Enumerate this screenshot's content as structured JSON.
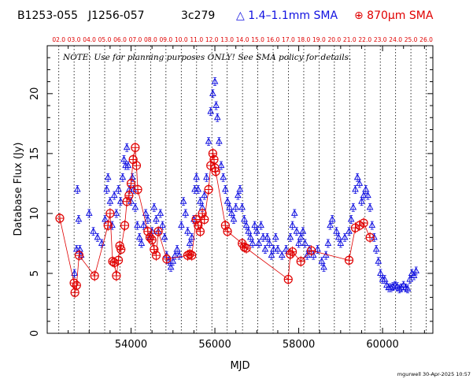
{
  "header": {
    "source_names": [
      "B1253-055",
      "J1256-057",
      "3c279"
    ],
    "legend_blue": "△ 1.4–1.1mm SMA",
    "legend_red": "⊕ 870μm SMA",
    "color_blue": "#1010e0",
    "color_red": "#e00000"
  },
  "note": "NOTE: Use for planning purposes ONLY!  See SMA policy for details.",
  "credit": "mgurwell 30-Apr-2025 10:57",
  "chart_data": {
    "type": "scatter",
    "xlabel": "MJD",
    "ylabel": "Database Flux (Jy)",
    "xlim": [
      52000,
      61200
    ],
    "ylim": [
      0,
      24
    ],
    "xticks": [
      54000,
      56000,
      58000,
      60000
    ],
    "yticks": [
      0,
      5,
      10,
      15,
      20
    ],
    "top_axis_labels": [
      "02.0",
      "03.0",
      "04.0",
      "05.0",
      "06.0",
      "07.0",
      "08.0",
      "09.0",
      "10.0",
      "11.0",
      "12.0",
      "13.0",
      "14.0",
      "15.0",
      "16.0",
      "17.0",
      "18.0",
      "19.0",
      "20.0",
      "21.0",
      "22.0",
      "23.0",
      "24.0",
      "25.0",
      "26.0"
    ],
    "top_axis_mjd": [
      52276,
      52641,
      53006,
      53371,
      53737,
      54102,
      54467,
      54832,
      55198,
      55563,
      55928,
      56293,
      56659,
      57024,
      57389,
      57754,
      58120,
      58485,
      58850,
      59215,
      59581,
      59946,
      60311,
      60676,
      61041
    ],
    "series": [
      {
        "marker": "triangle",
        "color": "#1010e0",
        "points": [
          [
            52650,
            5.0
          ],
          [
            52700,
            7.0
          ],
          [
            52720,
            12.0
          ],
          [
            52750,
            9.5
          ],
          [
            52780,
            7.0
          ],
          [
            52810,
            6.5
          ],
          [
            53000,
            10.0
          ],
          [
            53100,
            8.5
          ],
          [
            53200,
            8.0
          ],
          [
            53300,
            7.5
          ],
          [
            53380,
            9.5
          ],
          [
            53420,
            12.0
          ],
          [
            53450,
            13.0
          ],
          [
            53500,
            11.0
          ],
          [
            53550,
            9.0
          ],
          [
            53600,
            11.5
          ],
          [
            53650,
            10.0
          ],
          [
            53700,
            12.0
          ],
          [
            53750,
            11.0
          ],
          [
            53800,
            13.0
          ],
          [
            53830,
            14.5
          ],
          [
            53870,
            14.0
          ],
          [
            53900,
            15.5
          ],
          [
            53930,
            14.0
          ],
          [
            53960,
            12.0
          ],
          [
            54000,
            11.0
          ],
          [
            54030,
            13.0
          ],
          [
            54060,
            12.0
          ],
          [
            54100,
            10.5
          ],
          [
            54150,
            9.0
          ],
          [
            54200,
            8.0
          ],
          [
            54250,
            7.5
          ],
          [
            54300,
            9.0
          ],
          [
            54350,
            10.0
          ],
          [
            54400,
            9.5
          ],
          [
            54450,
            8.0
          ],
          [
            54500,
            8.5
          ],
          [
            54550,
            10.5
          ],
          [
            54600,
            9.5
          ],
          [
            54650,
            8.5
          ],
          [
            54700,
            10.0
          ],
          [
            54750,
            9.0
          ],
          [
            54800,
            8.0
          ],
          [
            54850,
            6.5
          ],
          [
            54900,
            6.0
          ],
          [
            54950,
            5.5
          ],
          [
            55000,
            6.0
          ],
          [
            55050,
            6.5
          ],
          [
            55100,
            7.0
          ],
          [
            55150,
            6.5
          ],
          [
            55200,
            9.0
          ],
          [
            55250,
            11.0
          ],
          [
            55300,
            10.0
          ],
          [
            55350,
            8.5
          ],
          [
            55400,
            7.5
          ],
          [
            55450,
            8.0
          ],
          [
            55500,
            9.5
          ],
          [
            55520,
            12.0
          ],
          [
            55560,
            13.0
          ],
          [
            55600,
            12.0
          ],
          [
            55650,
            11.0
          ],
          [
            55700,
            10.5
          ],
          [
            55750,
            11.5
          ],
          [
            55800,
            13.0
          ],
          [
            55850,
            16.0
          ],
          [
            55900,
            18.5
          ],
          [
            55950,
            20.0
          ],
          [
            56000,
            21.0
          ],
          [
            56030,
            19.0
          ],
          [
            56060,
            18.0
          ],
          [
            56100,
            16.0
          ],
          [
            56150,
            14.0
          ],
          [
            56200,
            13.0
          ],
          [
            56250,
            12.0
          ],
          [
            56300,
            11.0
          ],
          [
            56350,
            10.5
          ],
          [
            56400,
            10.0
          ],
          [
            56450,
            9.5
          ],
          [
            56500,
            10.5
          ],
          [
            56550,
            11.5
          ],
          [
            56600,
            12.0
          ],
          [
            56650,
            10.5
          ],
          [
            56700,
            9.5
          ],
          [
            56750,
            9.0
          ],
          [
            56800,
            8.5
          ],
          [
            56850,
            8.0
          ],
          [
            56900,
            7.5
          ],
          [
            56950,
            9.0
          ],
          [
            57000,
            8.5
          ],
          [
            57050,
            7.5
          ],
          [
            57100,
            9.0
          ],
          [
            57150,
            8.0
          ],
          [
            57200,
            7.0
          ],
          [
            57250,
            8.0
          ],
          [
            57300,
            7.5
          ],
          [
            57350,
            6.5
          ],
          [
            57400,
            7.0
          ],
          [
            57450,
            8.0
          ],
          [
            57500,
            7.0
          ],
          [
            57600,
            6.5
          ],
          [
            57700,
            7.0
          ],
          [
            57800,
            8.0
          ],
          [
            57850,
            9.0
          ],
          [
            57900,
            10.0
          ],
          [
            57950,
            8.5
          ],
          [
            58000,
            7.5
          ],
          [
            58050,
            8.0
          ],
          [
            58100,
            8.5
          ],
          [
            58150,
            7.5
          ],
          [
            58200,
            6.5
          ],
          [
            58250,
            7.0
          ],
          [
            58350,
            6.5
          ],
          [
            58450,
            7.0
          ],
          [
            58550,
            6.0
          ],
          [
            58600,
            5.5
          ],
          [
            58650,
            6.5
          ],
          [
            58700,
            7.5
          ],
          [
            58750,
            9.0
          ],
          [
            58800,
            9.5
          ],
          [
            58900,
            8.5
          ],
          [
            58950,
            8.0
          ],
          [
            59000,
            7.5
          ],
          [
            59100,
            8.0
          ],
          [
            59200,
            8.5
          ],
          [
            59250,
            9.5
          ],
          [
            59300,
            10.5
          ],
          [
            59350,
            12.0
          ],
          [
            59400,
            13.0
          ],
          [
            59450,
            12.5
          ],
          [
            59500,
            11.0
          ],
          [
            59550,
            11.5
          ],
          [
            59600,
            12.0
          ],
          [
            59650,
            11.5
          ],
          [
            59700,
            10.5
          ],
          [
            59750,
            9.0
          ],
          [
            59800,
            8.0
          ],
          [
            59850,
            7.0
          ],
          [
            59900,
            6.0
          ],
          [
            59950,
            5.0
          ],
          [
            60000,
            4.5
          ],
          [
            60050,
            4.5
          ],
          [
            60100,
            4.0
          ],
          [
            60150,
            3.8
          ],
          [
            60200,
            3.8
          ],
          [
            60250,
            3.9
          ],
          [
            60300,
            4.0
          ],
          [
            60350,
            3.9
          ],
          [
            60400,
            3.7
          ],
          [
            60450,
            3.8
          ],
          [
            60500,
            4.0
          ],
          [
            60550,
            3.8
          ],
          [
            60600,
            3.7
          ],
          [
            60650,
            4.5
          ],
          [
            60700,
            5.0
          ],
          [
            60750,
            4.8
          ],
          [
            60800,
            5.2
          ]
        ]
      },
      {
        "marker": "circle-plus",
        "color": "#e00000",
        "points": [
          [
            52300,
            9.6
          ],
          [
            52640,
            4.2
          ],
          [
            52660,
            3.4
          ],
          [
            52700,
            4.0
          ],
          [
            52760,
            6.5
          ],
          [
            53130,
            4.8
          ],
          [
            53450,
            9.0
          ],
          [
            53500,
            10.0
          ],
          [
            53560,
            6.0
          ],
          [
            53600,
            5.9
          ],
          [
            53650,
            4.8
          ],
          [
            53700,
            6.1
          ],
          [
            53730,
            7.3
          ],
          [
            53760,
            7.0
          ],
          [
            53850,
            9.0
          ],
          [
            53900,
            11.0
          ],
          [
            53950,
            11.5
          ],
          [
            54000,
            12.5
          ],
          [
            54050,
            14.5
          ],
          [
            54100,
            15.5
          ],
          [
            54130,
            14.0
          ],
          [
            54160,
            12.0
          ],
          [
            54400,
            8.5
          ],
          [
            54450,
            8.0
          ],
          [
            54500,
            7.8
          ],
          [
            54550,
            7.0
          ],
          [
            54600,
            6.5
          ],
          [
            54650,
            8.5
          ],
          [
            54850,
            6.2
          ],
          [
            55350,
            6.5
          ],
          [
            55400,
            6.6
          ],
          [
            55450,
            6.5
          ],
          [
            55550,
            9.5
          ],
          [
            55600,
            9.0
          ],
          [
            55650,
            8.5
          ],
          [
            55700,
            10.0
          ],
          [
            55750,
            9.5
          ],
          [
            55850,
            12.0
          ],
          [
            55900,
            14.0
          ],
          [
            55950,
            15.0
          ],
          [
            55980,
            14.5
          ],
          [
            56000,
            13.8
          ],
          [
            56020,
            13.5
          ],
          [
            56250,
            9.0
          ],
          [
            56300,
            8.5
          ],
          [
            56650,
            7.5
          ],
          [
            56700,
            7.2
          ],
          [
            56750,
            7.1
          ],
          [
            57750,
            4.5
          ],
          [
            57800,
            6.6
          ],
          [
            57850,
            6.8
          ],
          [
            58050,
            6.0
          ],
          [
            58300,
            6.9
          ],
          [
            59200,
            6.1
          ],
          [
            59350,
            8.8
          ],
          [
            59450,
            9.0
          ],
          [
            59550,
            9.2
          ],
          [
            59700,
            8.0
          ]
        ]
      }
    ]
  }
}
